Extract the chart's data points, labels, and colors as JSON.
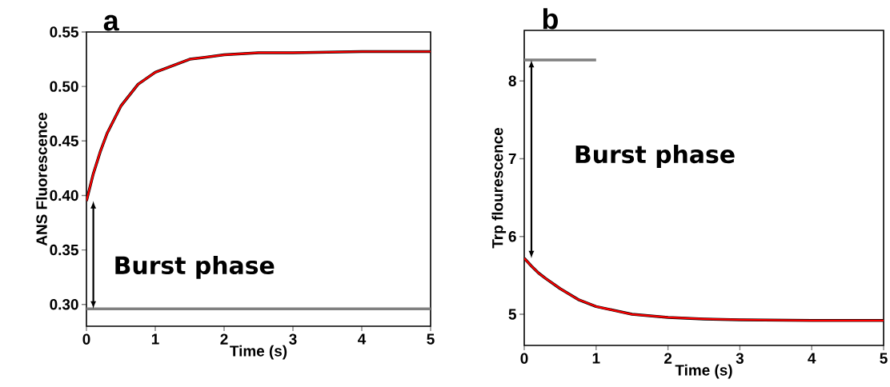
{
  "chart_data": [
    {
      "type": "line",
      "title": "a",
      "xlabel": "Time (s)",
      "ylabel": "ANS Fluorescence",
      "xlim": [
        0,
        5
      ],
      "ylim": [
        0.28,
        0.55
      ],
      "xticks": [
        0,
        1,
        2,
        3,
        4,
        5
      ],
      "yticks": [
        {
          "value": 0.3,
          "label": "0.30"
        },
        {
          "value": 0.35,
          "label": "0.35"
        },
        {
          "value": 0.4,
          "label": "0.40"
        },
        {
          "value": 0.45,
          "label": "0.45"
        },
        {
          "value": 0.5,
          "label": "0.50"
        },
        {
          "value": 0.55,
          "label": "0.55"
        }
      ],
      "annotations": [
        "Burst phase"
      ],
      "series": [
        {
          "color": "#000000",
          "x": [
            0,
            0.1,
            0.2,
            0.3,
            0.5,
            0.75,
            1,
            1.5,
            2,
            2.5,
            3,
            4,
            5
          ],
          "values": [
            0.395,
            0.42,
            0.44,
            0.457,
            0.482,
            0.502,
            0.513,
            0.525,
            0.529,
            0.531,
            0.531,
            0.532,
            0.532
          ]
        },
        {
          "color": "#ff0000",
          "x": [
            0,
            0.1,
            0.2,
            0.3,
            0.5,
            0.75,
            1,
            1.5,
            2,
            2.5,
            3,
            4,
            5
          ],
          "values": [
            0.395,
            0.42,
            0.44,
            0.457,
            0.482,
            0.502,
            0.513,
            0.525,
            0.529,
            0.531,
            0.531,
            0.532,
            0.532
          ]
        },
        {
          "color": "#808080",
          "x": [
            0,
            5
          ],
          "values": [
            0.296,
            0.296
          ]
        }
      ]
    },
    {
      "type": "line",
      "title": "b",
      "xlabel": "Time (s)",
      "ylabel": "Trp flourescence",
      "xlim": [
        0,
        5
      ],
      "ylim": [
        4.6,
        8.65
      ],
      "xticks": [
        0,
        1,
        2,
        3,
        4,
        5
      ],
      "yticks": [
        5,
        6,
        7,
        8
      ],
      "annotations": [
        "Burst phase"
      ],
      "series": [
        {
          "color": "#000000",
          "x": [
            0,
            0.1,
            0.2,
            0.3,
            0.5,
            0.75,
            1,
            1.5,
            2,
            2.5,
            3,
            4,
            5
          ],
          "values": [
            5.72,
            5.62,
            5.53,
            5.46,
            5.33,
            5.19,
            5.1,
            5.0,
            4.96,
            4.94,
            4.93,
            4.92,
            4.92
          ]
        },
        {
          "color": "#ff0000",
          "x": [
            0,
            0.1,
            0.2,
            0.3,
            0.5,
            0.75,
            1,
            1.5,
            2,
            2.5,
            3,
            4,
            5
          ],
          "values": [
            5.72,
            5.62,
            5.53,
            5.46,
            5.33,
            5.19,
            5.1,
            5.0,
            4.96,
            4.94,
            4.93,
            4.92,
            4.92
          ]
        },
        {
          "color": "#808080",
          "x": [
            0,
            1
          ],
          "values": [
            8.27,
            8.27
          ]
        }
      ]
    }
  ]
}
